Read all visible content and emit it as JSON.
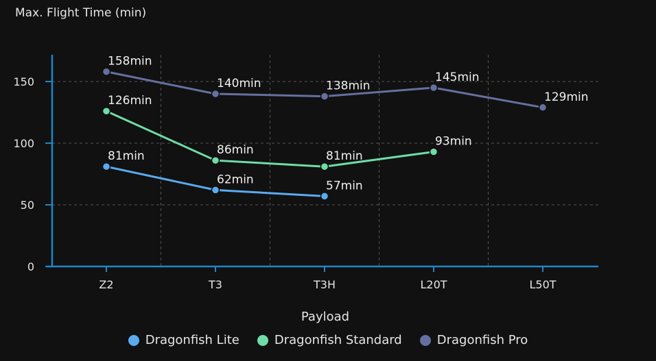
{
  "chart_data": {
    "type": "line",
    "title": "Max. Flight Time (min)",
    "xlabel": "Payload",
    "ylabel": "",
    "categories": [
      "Z2",
      "T3",
      "T3H",
      "L20T",
      "L50T"
    ],
    "ylim": [
      0,
      165
    ],
    "yticks": [
      0,
      50,
      100,
      150
    ],
    "grid": true,
    "legend_position": "bottom",
    "value_suffix": "min",
    "series": [
      {
        "name": "Dragonfish Lite",
        "color": "#5aaaf0",
        "values": [
          81,
          62,
          57,
          null,
          null
        ]
      },
      {
        "name": "Dragonfish Standard",
        "color": "#6fdca8",
        "values": [
          126,
          86,
          81,
          93,
          null
        ]
      },
      {
        "name": "Dragonfish Pro",
        "color": "#6670a0",
        "values": [
          158,
          140,
          138,
          145,
          129
        ]
      }
    ]
  }
}
